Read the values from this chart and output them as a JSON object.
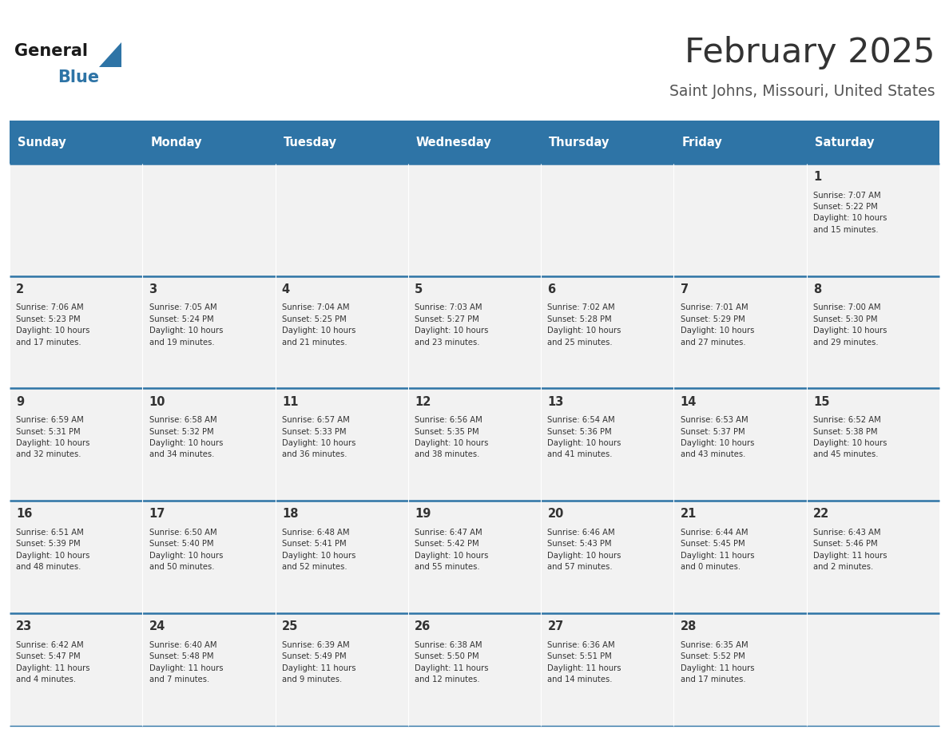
{
  "title": "February 2025",
  "subtitle": "Saint Johns, Missouri, United States",
  "header_color": "#2E74A6",
  "header_text_color": "#FFFFFF",
  "background_color": "#FFFFFF",
  "cell_bg_color": "#F2F2F2",
  "separator_color": "#2E74A6",
  "day_headers": [
    "Sunday",
    "Monday",
    "Tuesday",
    "Wednesday",
    "Thursday",
    "Friday",
    "Saturday"
  ],
  "title_color": "#333333",
  "subtitle_color": "#555555",
  "day_num_color": "#333333",
  "cell_text_color": "#333333",
  "weeks": [
    [
      {
        "day": null,
        "info": null
      },
      {
        "day": null,
        "info": null
      },
      {
        "day": null,
        "info": null
      },
      {
        "day": null,
        "info": null
      },
      {
        "day": null,
        "info": null
      },
      {
        "day": null,
        "info": null
      },
      {
        "day": 1,
        "info": "Sunrise: 7:07 AM\nSunset: 5:22 PM\nDaylight: 10 hours\nand 15 minutes."
      }
    ],
    [
      {
        "day": 2,
        "info": "Sunrise: 7:06 AM\nSunset: 5:23 PM\nDaylight: 10 hours\nand 17 minutes."
      },
      {
        "day": 3,
        "info": "Sunrise: 7:05 AM\nSunset: 5:24 PM\nDaylight: 10 hours\nand 19 minutes."
      },
      {
        "day": 4,
        "info": "Sunrise: 7:04 AM\nSunset: 5:25 PM\nDaylight: 10 hours\nand 21 minutes."
      },
      {
        "day": 5,
        "info": "Sunrise: 7:03 AM\nSunset: 5:27 PM\nDaylight: 10 hours\nand 23 minutes."
      },
      {
        "day": 6,
        "info": "Sunrise: 7:02 AM\nSunset: 5:28 PM\nDaylight: 10 hours\nand 25 minutes."
      },
      {
        "day": 7,
        "info": "Sunrise: 7:01 AM\nSunset: 5:29 PM\nDaylight: 10 hours\nand 27 minutes."
      },
      {
        "day": 8,
        "info": "Sunrise: 7:00 AM\nSunset: 5:30 PM\nDaylight: 10 hours\nand 29 minutes."
      }
    ],
    [
      {
        "day": 9,
        "info": "Sunrise: 6:59 AM\nSunset: 5:31 PM\nDaylight: 10 hours\nand 32 minutes."
      },
      {
        "day": 10,
        "info": "Sunrise: 6:58 AM\nSunset: 5:32 PM\nDaylight: 10 hours\nand 34 minutes."
      },
      {
        "day": 11,
        "info": "Sunrise: 6:57 AM\nSunset: 5:33 PM\nDaylight: 10 hours\nand 36 minutes."
      },
      {
        "day": 12,
        "info": "Sunrise: 6:56 AM\nSunset: 5:35 PM\nDaylight: 10 hours\nand 38 minutes."
      },
      {
        "day": 13,
        "info": "Sunrise: 6:54 AM\nSunset: 5:36 PM\nDaylight: 10 hours\nand 41 minutes."
      },
      {
        "day": 14,
        "info": "Sunrise: 6:53 AM\nSunset: 5:37 PM\nDaylight: 10 hours\nand 43 minutes."
      },
      {
        "day": 15,
        "info": "Sunrise: 6:52 AM\nSunset: 5:38 PM\nDaylight: 10 hours\nand 45 minutes."
      }
    ],
    [
      {
        "day": 16,
        "info": "Sunrise: 6:51 AM\nSunset: 5:39 PM\nDaylight: 10 hours\nand 48 minutes."
      },
      {
        "day": 17,
        "info": "Sunrise: 6:50 AM\nSunset: 5:40 PM\nDaylight: 10 hours\nand 50 minutes."
      },
      {
        "day": 18,
        "info": "Sunrise: 6:48 AM\nSunset: 5:41 PM\nDaylight: 10 hours\nand 52 minutes."
      },
      {
        "day": 19,
        "info": "Sunrise: 6:47 AM\nSunset: 5:42 PM\nDaylight: 10 hours\nand 55 minutes."
      },
      {
        "day": 20,
        "info": "Sunrise: 6:46 AM\nSunset: 5:43 PM\nDaylight: 10 hours\nand 57 minutes."
      },
      {
        "day": 21,
        "info": "Sunrise: 6:44 AM\nSunset: 5:45 PM\nDaylight: 11 hours\nand 0 minutes."
      },
      {
        "day": 22,
        "info": "Sunrise: 6:43 AM\nSunset: 5:46 PM\nDaylight: 11 hours\nand 2 minutes."
      }
    ],
    [
      {
        "day": 23,
        "info": "Sunrise: 6:42 AM\nSunset: 5:47 PM\nDaylight: 11 hours\nand 4 minutes."
      },
      {
        "day": 24,
        "info": "Sunrise: 6:40 AM\nSunset: 5:48 PM\nDaylight: 11 hours\nand 7 minutes."
      },
      {
        "day": 25,
        "info": "Sunrise: 6:39 AM\nSunset: 5:49 PM\nDaylight: 11 hours\nand 9 minutes."
      },
      {
        "day": 26,
        "info": "Sunrise: 6:38 AM\nSunset: 5:50 PM\nDaylight: 11 hours\nand 12 minutes."
      },
      {
        "day": 27,
        "info": "Sunrise: 6:36 AM\nSunset: 5:51 PM\nDaylight: 11 hours\nand 14 minutes."
      },
      {
        "day": 28,
        "info": "Sunrise: 6:35 AM\nSunset: 5:52 PM\nDaylight: 11 hours\nand 17 minutes."
      },
      {
        "day": null,
        "info": null
      }
    ]
  ]
}
